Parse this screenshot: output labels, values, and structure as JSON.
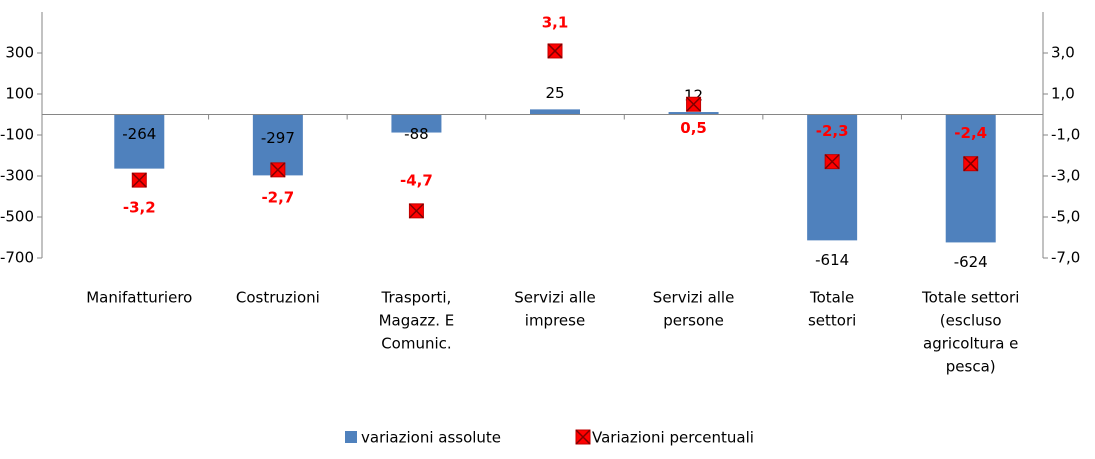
{
  "chart_data": {
    "type": "bar_marker",
    "categories": [
      [
        "Manifatturiero"
      ],
      [
        "Costruzioni"
      ],
      [
        "Trasporti,",
        "Magazz. E",
        "Comunic."
      ],
      [
        "Servizi alle",
        "imprese"
      ],
      [
        "Servizi alle",
        "persone"
      ],
      [
        "Totale",
        "settori"
      ],
      [
        "Totale settori",
        "(escluso",
        "agricoltura e",
        "pesca)"
      ]
    ],
    "series": [
      {
        "name": "variazioni assolute",
        "color": "#4f81bd",
        "values": [
          -264,
          -297,
          -88,
          25,
          12,
          -614,
          -624
        ]
      },
      {
        "name": "Variazioni percentuali",
        "color": "#ff0000",
        "axis": "y2",
        "values": [
          -3.2,
          -2.7,
          -4.7,
          3.1,
          0.5,
          -2.3,
          -2.4
        ],
        "value_labels": [
          "-3,2",
          "-2,7",
          "-4,7",
          "3,1",
          "0,5",
          "-2,3",
          "-2,4"
        ]
      }
    ],
    "ylim": [
      -700,
      500
    ],
    "yticks": [
      300,
      100,
      -100,
      -300,
      -500,
      -700
    ],
    "y2lim": [
      -7,
      5
    ],
    "y2ticks": [
      {
        "value": 3,
        "label": "3,0"
      },
      {
        "value": 1,
        "label": "1,0"
      },
      {
        "value": -1,
        "label": "-1,0"
      },
      {
        "value": -3,
        "label": "-3,0"
      },
      {
        "value": -5,
        "label": "-5,0"
      },
      {
        "value": -7,
        "label": "-7,0"
      }
    ]
  }
}
